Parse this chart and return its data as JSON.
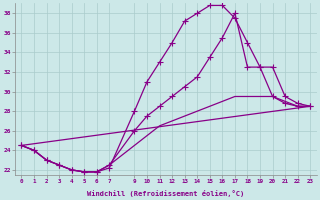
{
  "xlabel": "Windchill (Refroidissement éolien,°C)",
  "background_color": "#cce8e8",
  "grid_color": "#aacccc",
  "line_color": "#880088",
  "xlim": [
    -0.5,
    23.5
  ],
  "ylim": [
    21.5,
    39.0
  ],
  "yticks": [
    22,
    24,
    26,
    28,
    30,
    32,
    34,
    36,
    38
  ],
  "xticks": [
    0,
    1,
    2,
    3,
    4,
    5,
    6,
    7,
    9,
    10,
    11,
    12,
    13,
    14,
    15,
    16,
    17,
    18,
    19,
    20,
    21,
    22,
    23
  ],
  "series": [
    {
      "x": [
        0,
        1,
        2,
        3,
        4,
        5,
        6,
        7,
        9,
        10,
        11,
        12,
        13,
        14,
        15,
        16,
        17,
        18,
        19,
        20,
        21,
        22,
        23
      ],
      "y": [
        24.5,
        24.0,
        23.0,
        22.5,
        22.0,
        21.8,
        21.8,
        22.2,
        28.0,
        31.0,
        33.0,
        35.0,
        37.2,
        38.0,
        38.8,
        38.8,
        37.5,
        35.0,
        32.5,
        29.5,
        28.8,
        28.5,
        28.5
      ]
    },
    {
      "x": [
        0,
        1,
        2,
        3,
        4,
        5,
        6,
        7,
        9,
        10,
        11,
        12,
        13,
        14,
        15,
        16,
        17,
        18,
        19,
        20,
        21,
        22,
        23
      ],
      "y": [
        24.5,
        24.0,
        23.0,
        22.5,
        22.0,
        21.8,
        21.8,
        22.5,
        26.0,
        27.5,
        28.5,
        29.5,
        30.5,
        31.5,
        33.5,
        35.5,
        38.0,
        32.5,
        32.5,
        32.5,
        29.5,
        28.8,
        28.5
      ]
    },
    {
      "x": [
        0,
        23
      ],
      "y": [
        24.5,
        28.5
      ],
      "no_marker": true
    },
    {
      "x": [
        0,
        1,
        2,
        3,
        4,
        5,
        6,
        7,
        9,
        10,
        11,
        12,
        13,
        14,
        15,
        16,
        17,
        18,
        19,
        20,
        21,
        22,
        23
      ],
      "y": [
        24.5,
        24.0,
        23.0,
        22.5,
        22.0,
        21.8,
        21.8,
        22.5,
        24.5,
        25.5,
        26.5,
        27.0,
        27.5,
        28.0,
        28.5,
        29.0,
        29.5,
        29.5,
        29.5,
        29.5,
        29.0,
        28.5,
        28.5
      ],
      "no_marker": true
    }
  ]
}
